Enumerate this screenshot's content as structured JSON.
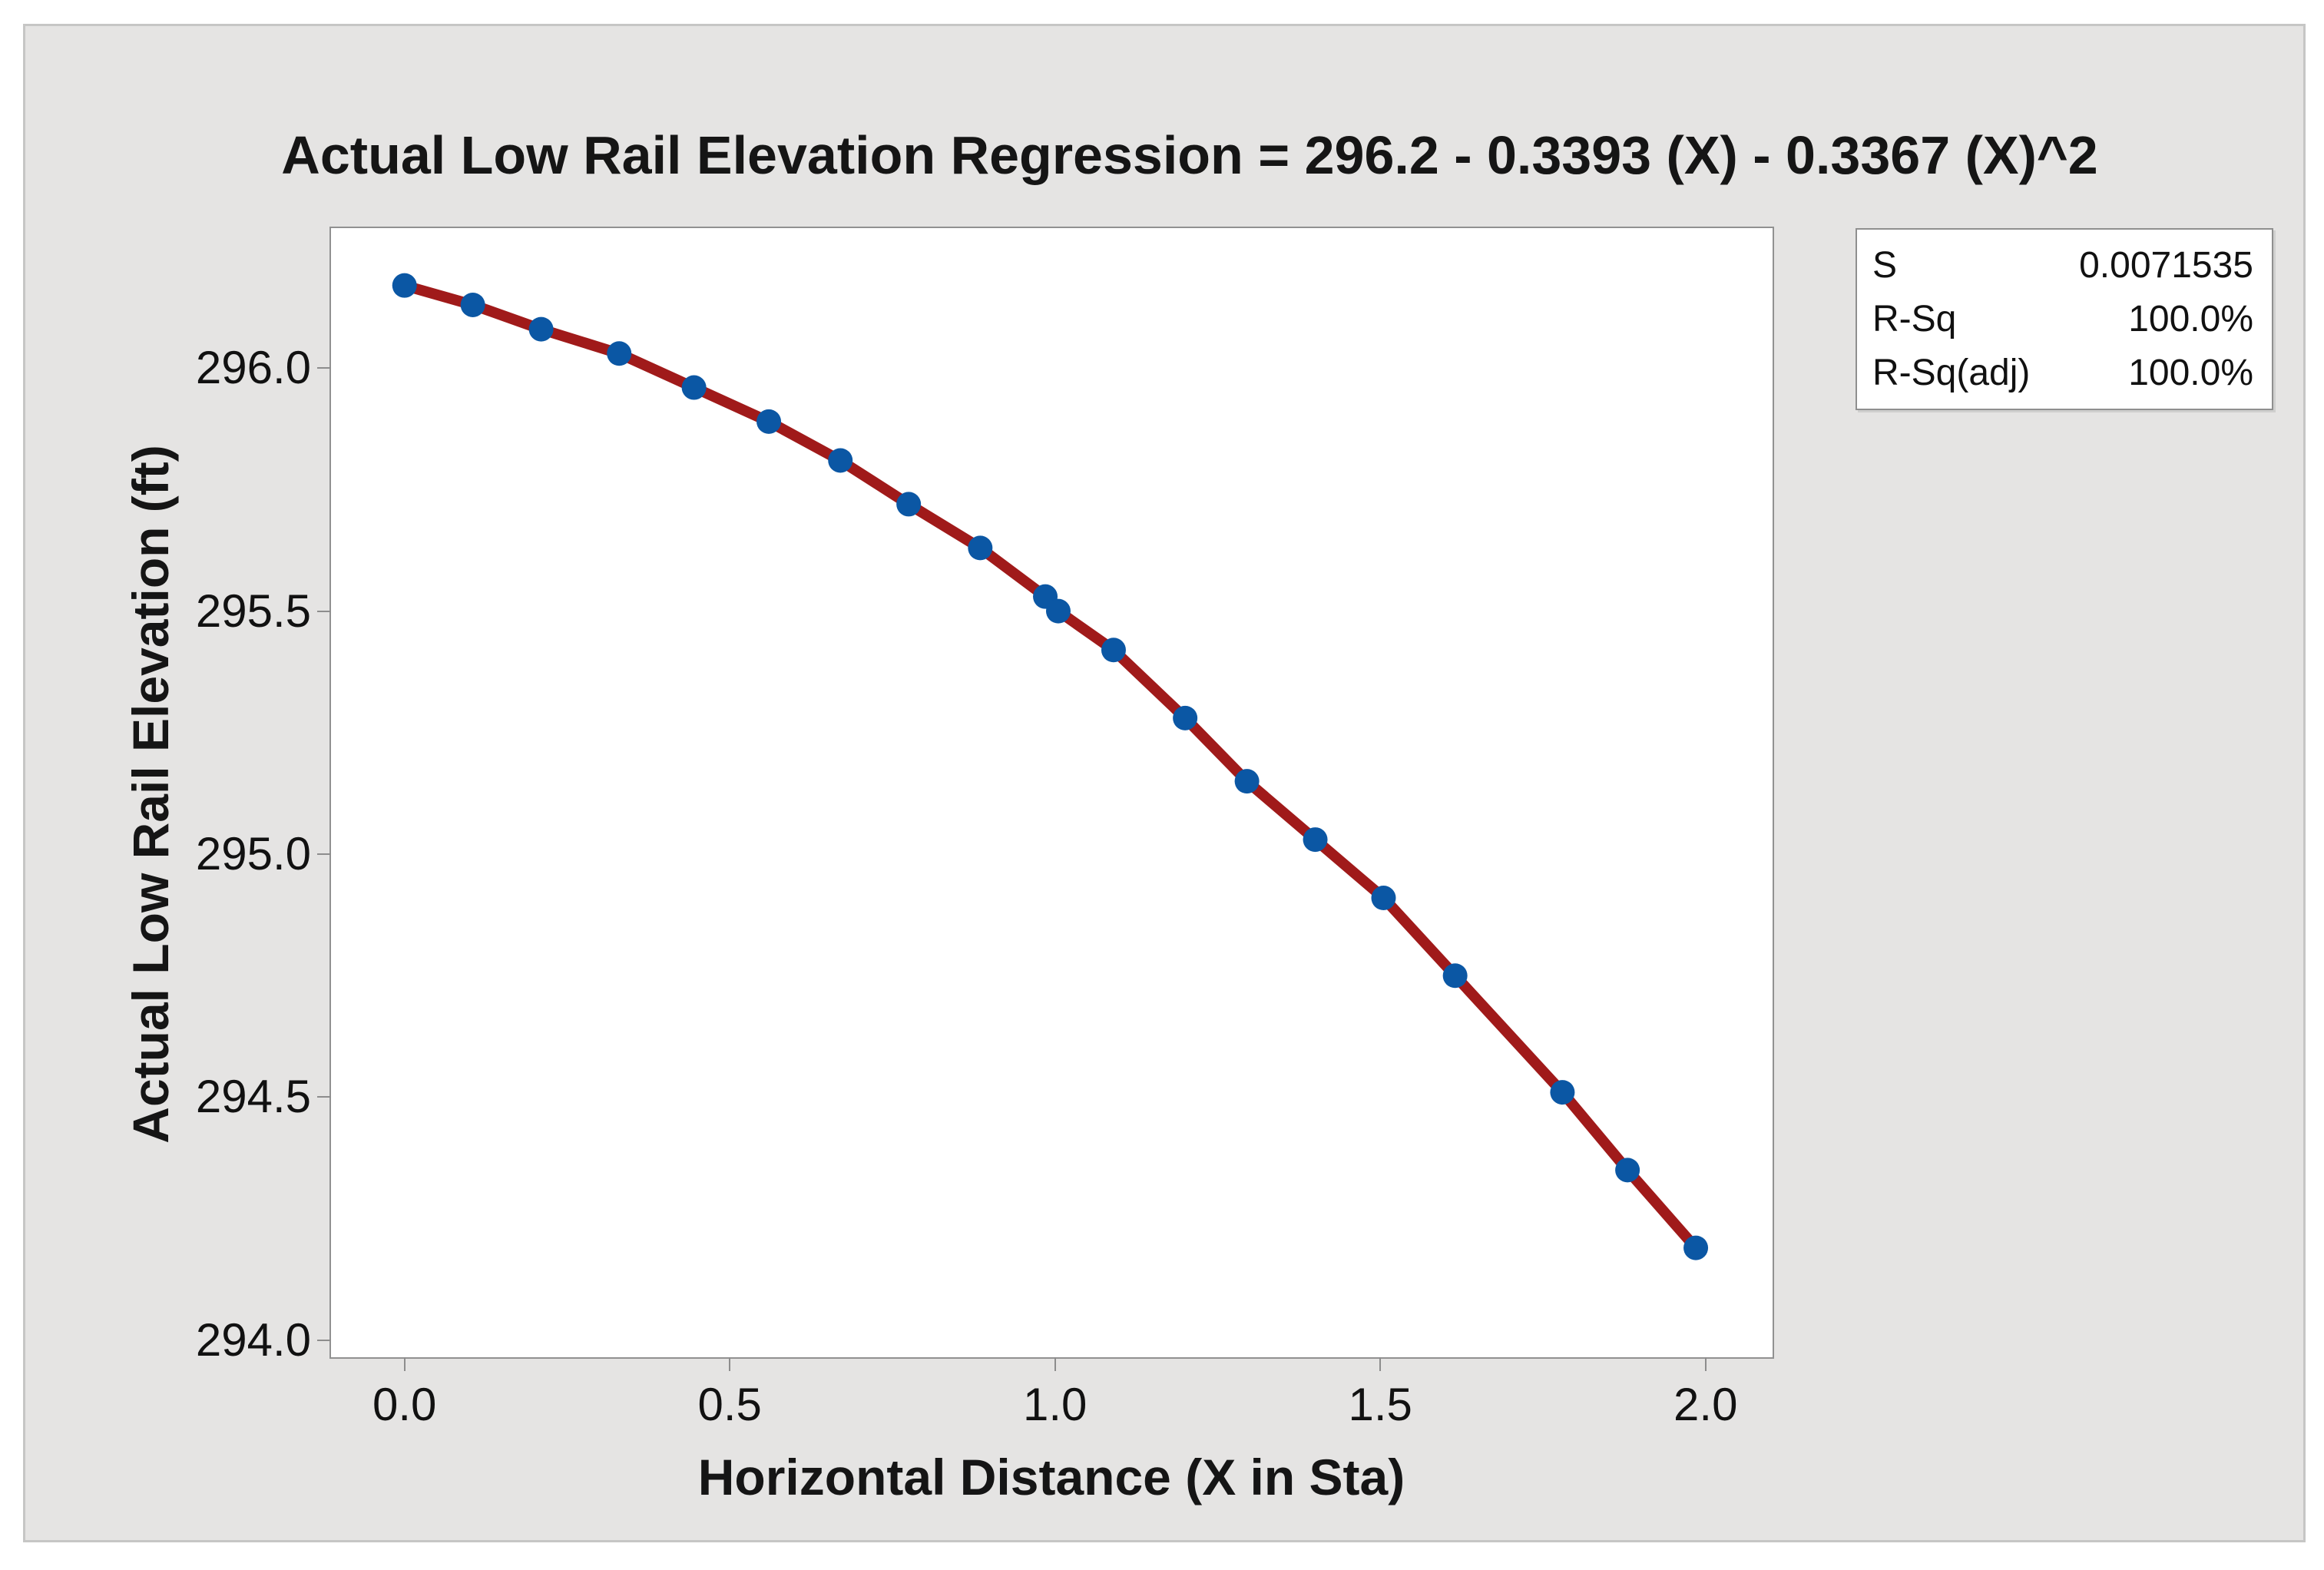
{
  "figure": {
    "background_color": "#e5e4e3",
    "border_color": "#c6c6c5",
    "plot_background": "#ffffff"
  },
  "chart_data": {
    "type": "line",
    "subtype": "fitted-line-plot-with-scatter",
    "title": "Actual Low Rail Elevation Regression = 296.2 - 0.3393 (X) - 0.3367 (X)^2",
    "xlabel": "Horizontal Distance (X in Sta)",
    "ylabel": "Actual Low Rail Elevation (ft)",
    "x": [
      0.0,
      0.105,
      0.21,
      0.33,
      0.445,
      0.56,
      0.67,
      0.775,
      0.885,
      0.985,
      1.005,
      1.09,
      1.2,
      1.295,
      1.4,
      1.505,
      1.615,
      1.78,
      1.88,
      1.985
    ],
    "y": [
      296.17,
      296.13,
      296.08,
      296.03,
      295.96,
      295.89,
      295.81,
      295.72,
      295.63,
      295.53,
      295.5,
      295.42,
      295.28,
      295.15,
      295.03,
      294.91,
      294.75,
      294.51,
      294.35,
      294.19
    ],
    "x_ticks": [
      0.0,
      0.5,
      1.0,
      1.5,
      2.0
    ],
    "x_tick_labels": [
      "0.0",
      "0.5",
      "1.0",
      "1.5",
      "2.0"
    ],
    "y_ticks": [
      296.0,
      295.5,
      295.0,
      294.5,
      294.0
    ],
    "y_tick_labels": [
      "296.0",
      "295.5",
      "295.0",
      "294.5",
      "294.0"
    ],
    "xlim": [
      -0.113,
      2.103
    ],
    "ylim": [
      293.965,
      296.288
    ],
    "grid": false,
    "legend_position": "top-right",
    "colors": {
      "point": "#0b57a4",
      "fit_line": "#a01a1a"
    }
  },
  "legend": {
    "rows": [
      {
        "label": "S",
        "value": "0.0071535"
      },
      {
        "label": "R-Sq",
        "value": "100.0%"
      },
      {
        "label": "R-Sq(adj)",
        "value": "100.0%"
      }
    ]
  }
}
